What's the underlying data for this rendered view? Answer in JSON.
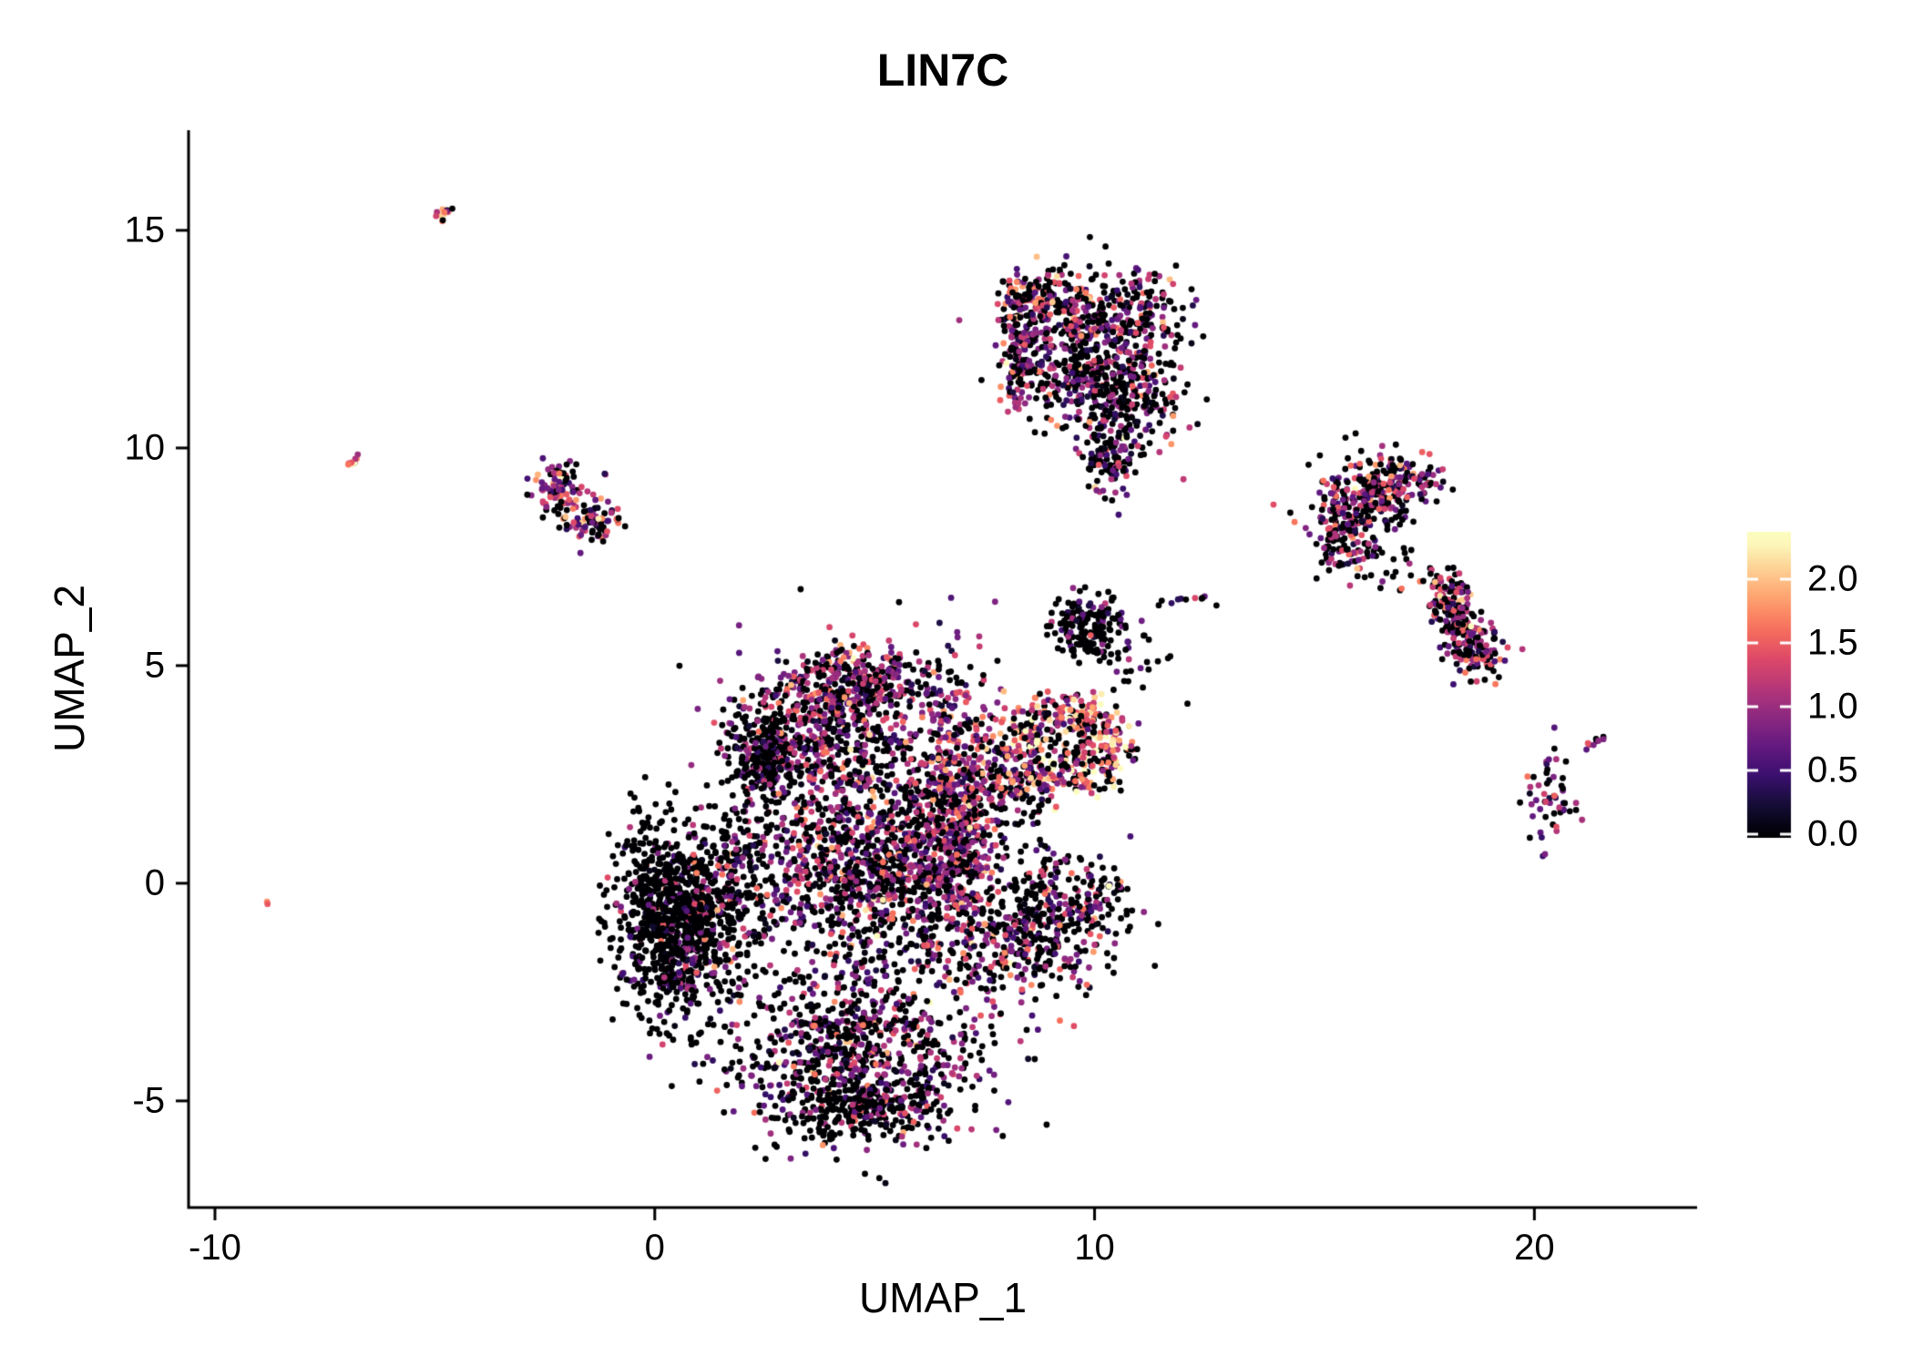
{
  "chart_data": {
    "type": "scatter",
    "title": "LIN7C",
    "xlabel": "UMAP_1",
    "ylabel": "UMAP_2",
    "xlim": [
      -10.6,
      23.7
    ],
    "ylim": [
      -7.45,
      17.3
    ],
    "x_ticks": [
      -10,
      0,
      10,
      20
    ],
    "y_ticks": [
      15,
      10,
      5,
      0,
      -5
    ],
    "grid": false,
    "point_radius_px": 3.4,
    "seed": 7,
    "legend": {
      "position": "right",
      "kind": "colorbar",
      "ticks": [
        2.0,
        1.5,
        1.0,
        0.5,
        0.0
      ],
      "labels": [
        "2.0",
        "1.5",
        "1.0",
        "0.5",
        "0.0"
      ],
      "vmin": 0.0,
      "vmax": 2.3,
      "colormap": "magma",
      "stops": [
        [
          0.0,
          "#000004"
        ],
        [
          0.1,
          "#140e36"
        ],
        [
          0.2,
          "#3b0f70"
        ],
        [
          0.3,
          "#641a80"
        ],
        [
          0.4,
          "#8c2981"
        ],
        [
          0.5,
          "#b73779"
        ],
        [
          0.6,
          "#de4968"
        ],
        [
          0.7,
          "#f7705c"
        ],
        [
          0.8,
          "#fe9f6d"
        ],
        [
          0.9,
          "#fecf92"
        ],
        [
          1.0,
          "#fcfdbf"
        ]
      ]
    },
    "clusters": [
      {
        "name": "streak-top-left",
        "type": "streak",
        "x1": -4.95,
        "y1": 15.25,
        "x2": -4.6,
        "y2": 15.55,
        "jitter": 0.05,
        "n": 14,
        "p0": 0.1,
        "emean": 1.6,
        "esd": 0.4
      },
      {
        "name": "streak-left",
        "type": "streak",
        "x1": -6.95,
        "y1": 9.6,
        "x2": -6.75,
        "y2": 9.85,
        "jitter": 0.04,
        "n": 10,
        "p0": 0.1,
        "emean": 1.7,
        "esd": 0.4
      },
      {
        "name": "lone-dot-left",
        "type": "streak",
        "x1": -8.85,
        "y1": -0.5,
        "x2": -8.78,
        "y2": -0.42,
        "jitter": 0.02,
        "n": 2,
        "p0": 0,
        "emean": 1.6,
        "esd": 0.2
      },
      {
        "name": "left-small-upper",
        "type": "blob",
        "cx": -2.2,
        "cy": 9.05,
        "sx": 0.33,
        "sy": 0.3,
        "n": 95,
        "p0": 0.4,
        "emean": 1.0,
        "esd": 0.55
      },
      {
        "name": "left-small-lower",
        "type": "blob",
        "cx": -1.4,
        "cy": 8.3,
        "sx": 0.3,
        "sy": 0.22,
        "n": 80,
        "p0": 0.4,
        "emean": 1.0,
        "esd": 0.55
      },
      {
        "name": "top-a",
        "type": "blob",
        "cx": 8.9,
        "cy": 13.4,
        "sx": 0.55,
        "sy": 0.35,
        "n": 160,
        "p0": 0.42,
        "emean": 1.1,
        "esd": 0.5
      },
      {
        "name": "top-b",
        "type": "blob",
        "cx": 10.6,
        "cy": 13.1,
        "sx": 0.8,
        "sy": 0.5,
        "n": 260,
        "p0": 0.52,
        "emean": 0.9,
        "esd": 0.5
      },
      {
        "name": "top-c",
        "type": "blob",
        "cx": 9.5,
        "cy": 12.0,
        "sx": 0.7,
        "sy": 0.6,
        "n": 250,
        "p0": 0.5,
        "emean": 0.9,
        "esd": 0.5
      },
      {
        "name": "top-d",
        "type": "blob",
        "cx": 10.7,
        "cy": 11.2,
        "sx": 0.7,
        "sy": 0.6,
        "n": 240,
        "p0": 0.52,
        "emean": 0.9,
        "esd": 0.5
      },
      {
        "name": "top-left-column",
        "type": "blob",
        "cx": 8.3,
        "cy": 12.2,
        "sx": 0.22,
        "sy": 0.8,
        "n": 140,
        "p0": 0.35,
        "emean": 1.05,
        "esd": 0.5
      },
      {
        "name": "top-tail",
        "type": "blob",
        "cx": 10.3,
        "cy": 9.9,
        "sx": 0.35,
        "sy": 0.6,
        "n": 120,
        "p0": 0.55,
        "emean": 0.8,
        "esd": 0.45
      },
      {
        "name": "right-upper-a",
        "type": "blob",
        "cx": 16.1,
        "cy": 8.9,
        "sx": 0.55,
        "sy": 0.5,
        "n": 220,
        "p0": 0.45,
        "emean": 0.95,
        "esd": 0.5
      },
      {
        "name": "right-upper-b",
        "type": "blob",
        "cx": 17.2,
        "cy": 9.3,
        "sx": 0.4,
        "sy": 0.28,
        "n": 80,
        "p0": 0.4,
        "emean": 1.0,
        "esd": 0.5
      },
      {
        "name": "right-upper-c",
        "type": "blob",
        "cx": 15.6,
        "cy": 7.95,
        "sx": 0.35,
        "sy": 0.35,
        "n": 90,
        "p0": 0.45,
        "emean": 1.0,
        "esd": 0.5
      },
      {
        "name": "right-upper-sparse",
        "type": "blob",
        "cx": 16.3,
        "cy": 7.4,
        "sx": 0.5,
        "sy": 0.3,
        "n": 40,
        "p0": 0.7,
        "emean": 0.8,
        "esd": 0.4
      },
      {
        "name": "right-mid-elong",
        "type": "streak",
        "x1": 17.8,
        "y1": 6.9,
        "x2": 18.9,
        "y2": 4.9,
        "jitter": 0.27,
        "n": 250,
        "p0": 0.42,
        "emean": 1.0,
        "esd": 0.5
      },
      {
        "name": "bottom-right-small",
        "type": "blob",
        "cx": 20.35,
        "cy": 2.0,
        "sx": 0.28,
        "sy": 0.62,
        "n": 55,
        "p0": 0.5,
        "emean": 0.9,
        "esd": 0.45
      },
      {
        "name": "bottom-right-streak",
        "type": "streak",
        "x1": 21.25,
        "y1": 3.15,
        "x2": 21.6,
        "y2": 3.35,
        "jitter": 0.04,
        "n": 9,
        "p0": 0.15,
        "emean": 1.0,
        "esd": 0.35
      },
      {
        "name": "mid-black-small",
        "type": "blob",
        "cx": 9.9,
        "cy": 5.9,
        "sx": 0.42,
        "sy": 0.38,
        "n": 170,
        "p0": 0.78,
        "emean": 0.7,
        "esd": 0.4
      },
      {
        "name": "mid-stray-right",
        "type": "streak",
        "x1": 11.3,
        "y1": 6.45,
        "x2": 12.85,
        "y2": 6.55,
        "jitter": 0.07,
        "n": 11,
        "p0": 0.55,
        "emean": 0.9,
        "esd": 0.4
      },
      {
        "name": "mid-sparse",
        "type": "blob",
        "cx": 11.0,
        "cy": 5.0,
        "sx": 0.5,
        "sy": 0.45,
        "n": 22,
        "p0": 0.75,
        "emean": 0.8,
        "esd": 0.4
      },
      {
        "name": "ring-orange",
        "type": "ring",
        "cx": 9.3,
        "cy": 3.15,
        "r": 1.0,
        "rsd": 0.3,
        "ex": 1.15,
        "ey": 0.82,
        "n": 420,
        "p0": 0.25,
        "emean": 1.45,
        "esd": 0.55
      },
      {
        "name": "ring-inner-dark",
        "type": "blob",
        "cx": 9.4,
        "cy": 3.1,
        "sx": 0.5,
        "sy": 0.4,
        "n": 60,
        "p0": 0.72,
        "emean": 0.9,
        "esd": 0.4
      },
      {
        "name": "main-top-lobe",
        "type": "blob",
        "cx": 4.4,
        "cy": 4.6,
        "sx": 1.0,
        "sy": 0.42,
        "n": 430,
        "p0": 0.4,
        "emean": 1.0,
        "esd": 0.5
      },
      {
        "name": "main-upper-mid",
        "type": "blob",
        "cx": 3.8,
        "cy": 3.4,
        "sx": 1.0,
        "sy": 0.5,
        "n": 330,
        "p0": 0.48,
        "emean": 0.95,
        "esd": 0.5
      },
      {
        "name": "main-dark-patch",
        "type": "blob",
        "cx": 2.5,
        "cy": 2.9,
        "sx": 0.45,
        "sy": 0.5,
        "n": 220,
        "p0": 0.8,
        "emean": 0.7,
        "esd": 0.4
      },
      {
        "name": "main-left-dark-a",
        "type": "blob",
        "cx": 0.2,
        "cy": -0.7,
        "sx": 0.55,
        "sy": 1.15,
        "n": 600,
        "p0": 0.85,
        "emean": 0.8,
        "esd": 0.5
      },
      {
        "name": "main-left-dark-b",
        "type": "blob",
        "cx": 0.95,
        "cy": -1.2,
        "sx": 0.6,
        "sy": 1.0,
        "n": 350,
        "p0": 0.72,
        "emean": 0.8,
        "esd": 0.5
      },
      {
        "name": "main-left-sparse",
        "type": "blob",
        "cx": 1.7,
        "cy": 0.3,
        "sx": 0.6,
        "sy": 0.95,
        "n": 200,
        "p0": 0.7,
        "emean": 0.85,
        "esd": 0.5
      },
      {
        "name": "main-center",
        "type": "blob",
        "cx": 4.9,
        "cy": 0.7,
        "sx": 1.4,
        "sy": 1.4,
        "n": 1300,
        "p0": 0.5,
        "emean": 0.9,
        "esd": 0.5
      },
      {
        "name": "main-right-column",
        "type": "blob",
        "cx": 6.9,
        "cy": 1.5,
        "sx": 0.45,
        "sy": 1.6,
        "n": 620,
        "p0": 0.28,
        "emean": 1.05,
        "esd": 0.45
      },
      {
        "name": "main-bottom",
        "type": "blob",
        "cx": 4.6,
        "cy": -4.0,
        "sx": 1.35,
        "sy": 1.0,
        "n": 850,
        "p0": 0.55,
        "emean": 0.85,
        "esd": 0.5
      },
      {
        "name": "main-bottom-dark-edge",
        "type": "blob",
        "cx": 4.6,
        "cy": -5.2,
        "sx": 0.9,
        "sy": 0.35,
        "n": 150,
        "p0": 0.78,
        "emean": 0.7,
        "esd": 0.4
      },
      {
        "name": "main-right-protrusion",
        "type": "blob",
        "cx": 8.6,
        "cy": -1.0,
        "sx": 0.9,
        "sy": 0.8,
        "n": 430,
        "p0": 0.52,
        "emean": 0.9,
        "esd": 0.5
      },
      {
        "name": "main-right-tip",
        "type": "blob",
        "cx": 9.9,
        "cy": -0.4,
        "sx": 0.5,
        "sy": 0.5,
        "n": 80,
        "p0": 0.6,
        "emean": 0.85,
        "esd": 0.45
      },
      {
        "name": "bridge-upper",
        "type": "blob",
        "cx": 8.2,
        "cy": 2.1,
        "sx": 0.4,
        "sy": 0.45,
        "n": 70,
        "p0": 0.5,
        "emean": 1.0,
        "esd": 0.5
      }
    ]
  }
}
